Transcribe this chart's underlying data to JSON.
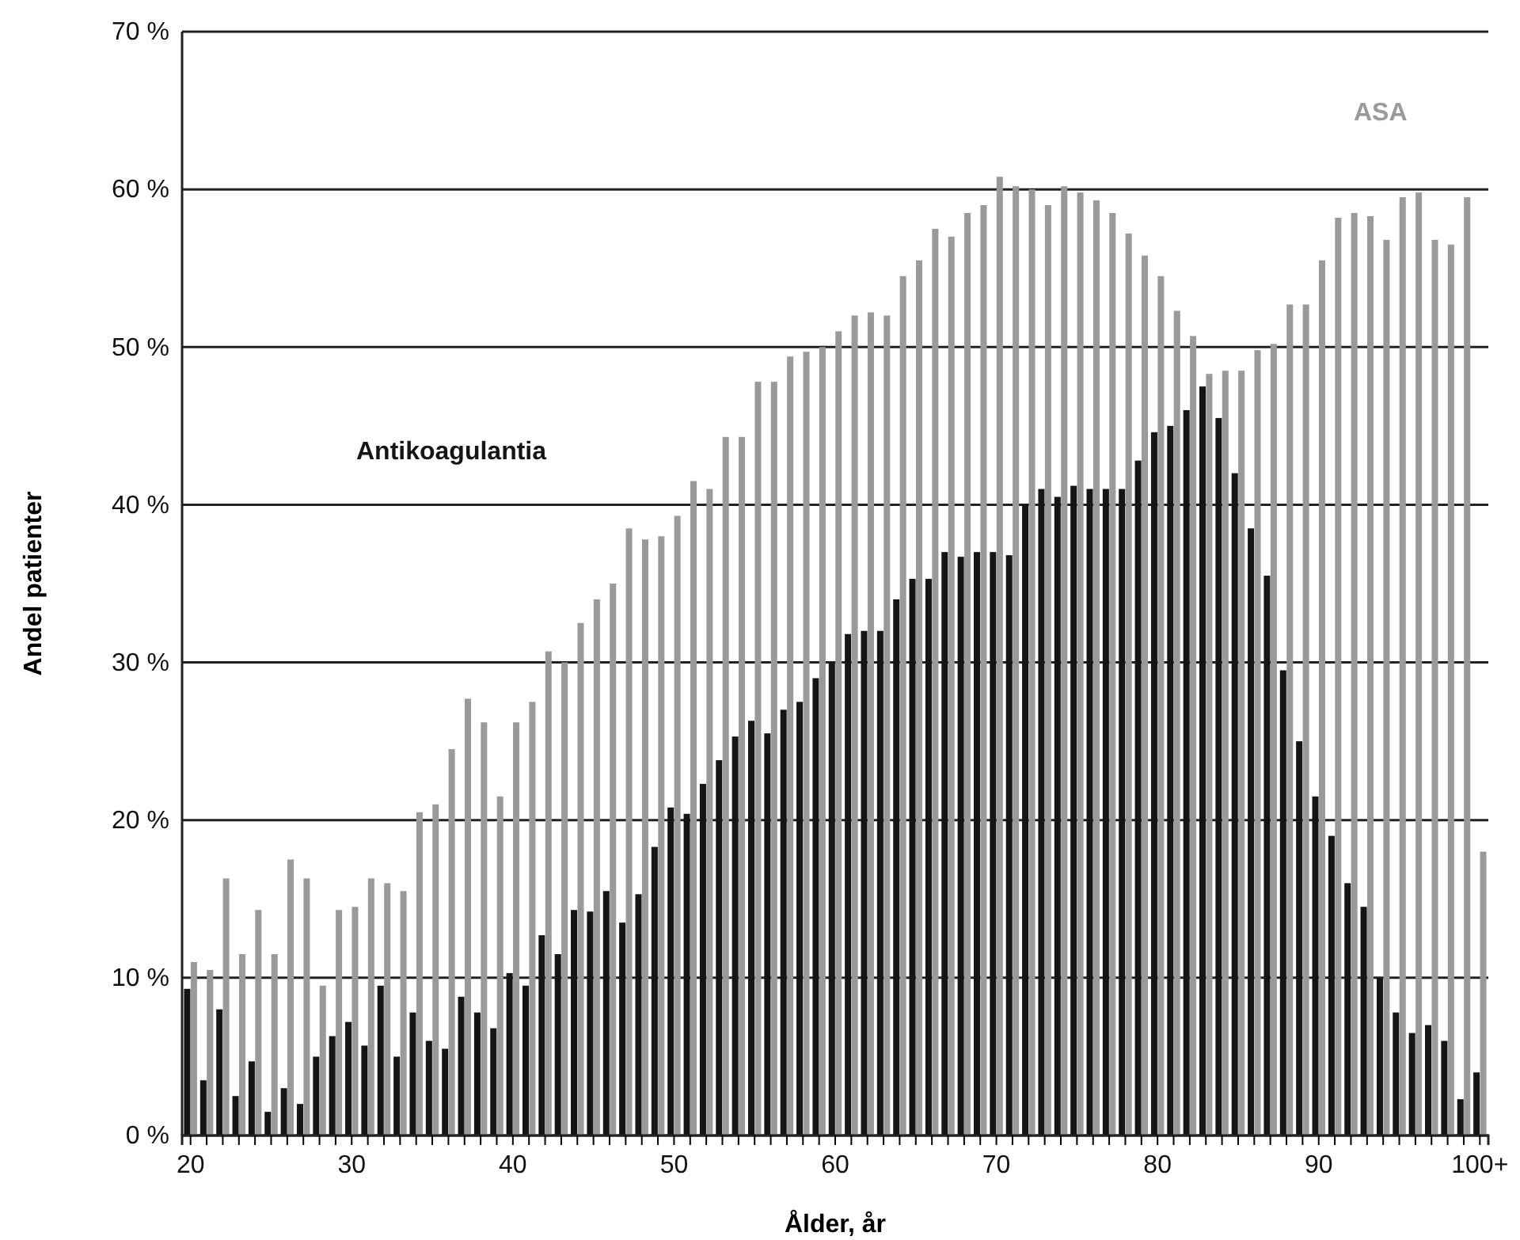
{
  "chart_data": {
    "type": "bar",
    "xlabel": "Ålder, år",
    "ylabel": "Andel patienter",
    "categories": [
      "20",
      null,
      null,
      null,
      null,
      null,
      null,
      null,
      null,
      null,
      "30",
      null,
      null,
      null,
      null,
      null,
      null,
      null,
      null,
      null,
      "40",
      null,
      null,
      null,
      null,
      null,
      null,
      null,
      null,
      null,
      "50",
      null,
      null,
      null,
      null,
      null,
      null,
      null,
      null,
      null,
      "60",
      null,
      null,
      null,
      null,
      null,
      null,
      null,
      null,
      null,
      "70",
      null,
      null,
      null,
      null,
      null,
      null,
      null,
      null,
      null,
      "80",
      null,
      null,
      null,
      null,
      null,
      null,
      null,
      null,
      null,
      "90",
      null,
      null,
      null,
      null,
      null,
      null,
      null,
      null,
      null,
      "100+"
    ],
    "series": [
      {
        "name": "Antikoagulantia",
        "color": "#151515",
        "values": [
          9.3,
          3.5,
          8,
          2.5,
          4.7,
          1.5,
          3,
          2,
          5,
          6.3,
          7.2,
          5.7,
          9.5,
          5,
          7.8,
          6,
          5.5,
          8.8,
          7.8,
          6.8,
          10.3,
          9.5,
          12.7,
          11.5,
          14.3,
          14.2,
          15.5,
          13.5,
          15.3,
          18.3,
          20.8,
          20.4,
          22.3,
          23.8,
          25.3,
          26.3,
          25.5,
          27,
          27.5,
          29,
          30,
          31.8,
          32,
          32,
          34,
          35.3,
          35.3,
          37,
          36.7,
          37,
          37,
          36.8,
          40,
          41,
          40.5,
          41.2,
          41,
          41,
          41,
          42.8,
          44.6,
          45,
          46,
          47.5,
          45.5,
          42,
          38.5,
          35.5,
          29.5,
          25,
          21.5,
          19,
          16,
          14.5,
          10,
          7.8,
          6.5,
          7,
          6,
          2.3,
          4
        ]
      },
      {
        "name": "ASA",
        "color": "#9a9a9a",
        "values": [
          11,
          10.5,
          16.3,
          11.5,
          14.3,
          11.5,
          17.5,
          16.3,
          9.5,
          14.3,
          14.5,
          16.3,
          16,
          15.5,
          20.5,
          21,
          24.5,
          27.7,
          26.2,
          21.5,
          26.2,
          27.5,
          30.7,
          30,
          32.5,
          34,
          35,
          38.5,
          37.8,
          38,
          39.3,
          41.5,
          41,
          44.3,
          44.3,
          47.8,
          47.8,
          49.4,
          49.7,
          50,
          51,
          52,
          52.2,
          52,
          54.5,
          55.5,
          57.5,
          57,
          58.5,
          59,
          60.8,
          60.2,
          60,
          59,
          60.2,
          59.8,
          59.3,
          58.5,
          57.2,
          55.8,
          54.5,
          52.3,
          50.7,
          48.3,
          48.5,
          48.5,
          49.8,
          50.2,
          52.7,
          52.7,
          55.5,
          58.2,
          58.5,
          58.3,
          56.8,
          59.5,
          59.8,
          56.8,
          56.5,
          59.5,
          18
        ]
      }
    ],
    "ylim": [
      0,
      70
    ],
    "yticks": [
      {
        "value": 0,
        "label": "0 %"
      },
      {
        "value": 10,
        "label": "10 %"
      },
      {
        "value": 20,
        "label": "20 %"
      },
      {
        "value": 30,
        "label": "30 %"
      },
      {
        "value": 40,
        "label": "40 %"
      },
      {
        "value": 50,
        "label": "50 %"
      },
      {
        "value": 60,
        "label": "60 %"
      },
      {
        "value": 70,
        "label": "70 %"
      }
    ],
    "grid": "y",
    "legend": false
  }
}
